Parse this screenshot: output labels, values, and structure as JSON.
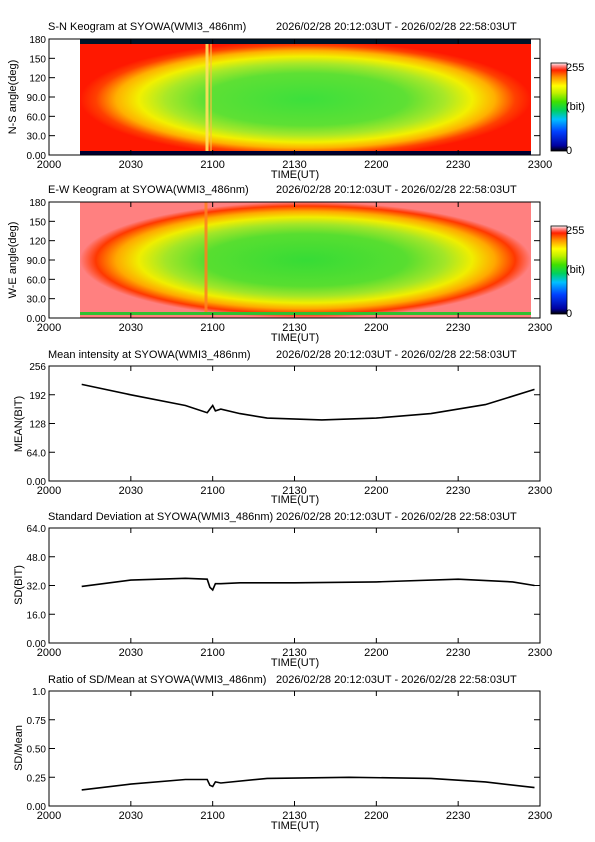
{
  "time_range": "2026/02/28 20:12:03UT - 2026/02/28 22:58:03UT",
  "time_axis": {
    "label": "TIME(UT)",
    "ticks": [
      "2000",
      "2030",
      "2100",
      "2130",
      "2200",
      "2230",
      "2300"
    ]
  },
  "colorbar": {
    "max_label": "255",
    "unit_label": "(bit)",
    "min_label": "0"
  },
  "chart_data": [
    {
      "type": "heatmap",
      "title": "S-N Keogram at SYOWA(WMI3_486nm)",
      "ylabel": "N-S angle(deg)",
      "yticks": [
        "0.00",
        "30.0",
        "60.0",
        "90.0",
        "120",
        "150",
        "180"
      ],
      "ylim": [
        0,
        180
      ],
      "color_range": [
        0,
        255
      ],
      "data_start": "20:12:03",
      "data_end": "22:58:03"
    },
    {
      "type": "heatmap",
      "title": "E-W Keogram at SYOWA(WMI3_486nm)",
      "ylabel": "W-E angle(deg)",
      "yticks": [
        "0.00",
        "30.0",
        "60.0",
        "90.0",
        "120",
        "150",
        "180"
      ],
      "ylim": [
        0,
        180
      ],
      "color_range": [
        0,
        255
      ],
      "data_start": "20:12:03",
      "data_end": "22:58:03"
    },
    {
      "type": "line",
      "title": "Mean intensity at SYOWA(WMI3_486nm)",
      "ylabel": "MEAN(BIT)",
      "yticks": [
        "0.00",
        "64.0",
        "128",
        "192",
        "256"
      ],
      "ylim": [
        0,
        256
      ],
      "series": [
        {
          "x": [
            "20:12",
            "20:30",
            "20:50",
            "20:58",
            "20:59",
            "21:00",
            "21:01",
            "21:03",
            "21:10",
            "21:20",
            "21:40",
            "22:00",
            "22:20",
            "22:40",
            "22:58"
          ],
          "values": [
            215,
            192,
            168,
            152,
            160,
            168,
            156,
            160,
            150,
            140,
            136,
            140,
            150,
            170,
            204
          ]
        }
      ]
    },
    {
      "type": "line",
      "title": "Standard Deviation at SYOWA(WMI3_486nm)",
      "ylabel": "SD(BIT)",
      "yticks": [
        "0.00",
        "16.0",
        "32.0",
        "48.0",
        "64.0"
      ],
      "ylim": [
        0,
        64
      ],
      "series": [
        {
          "x": [
            "20:12",
            "20:30",
            "20:50",
            "20:58",
            "20:59",
            "21:00",
            "21:01",
            "21:03",
            "21:10",
            "21:30",
            "22:00",
            "22:30",
            "22:50",
            "22:58"
          ],
          "values": [
            31.5,
            35,
            36,
            35.5,
            31,
            29.5,
            33,
            33,
            33.5,
            33.5,
            34,
            35.5,
            34,
            32
          ]
        }
      ]
    },
    {
      "type": "line",
      "title": "Ratio of SD/Mean at SYOWA(WMI3_486nm)",
      "ylabel": "SD/Mean",
      "yticks": [
        "0.00",
        "0.25",
        "0.50",
        "0.75",
        "1.0"
      ],
      "ylim": [
        0,
        1
      ],
      "series": [
        {
          "x": [
            "20:12",
            "20:30",
            "20:50",
            "20:58",
            "20:59",
            "21:00",
            "21:01",
            "21:03",
            "21:20",
            "21:50",
            "22:20",
            "22:40",
            "22:58"
          ],
          "values": [
            0.14,
            0.19,
            0.23,
            0.23,
            0.18,
            0.17,
            0.21,
            0.2,
            0.24,
            0.25,
            0.24,
            0.21,
            0.16
          ]
        }
      ]
    }
  ]
}
